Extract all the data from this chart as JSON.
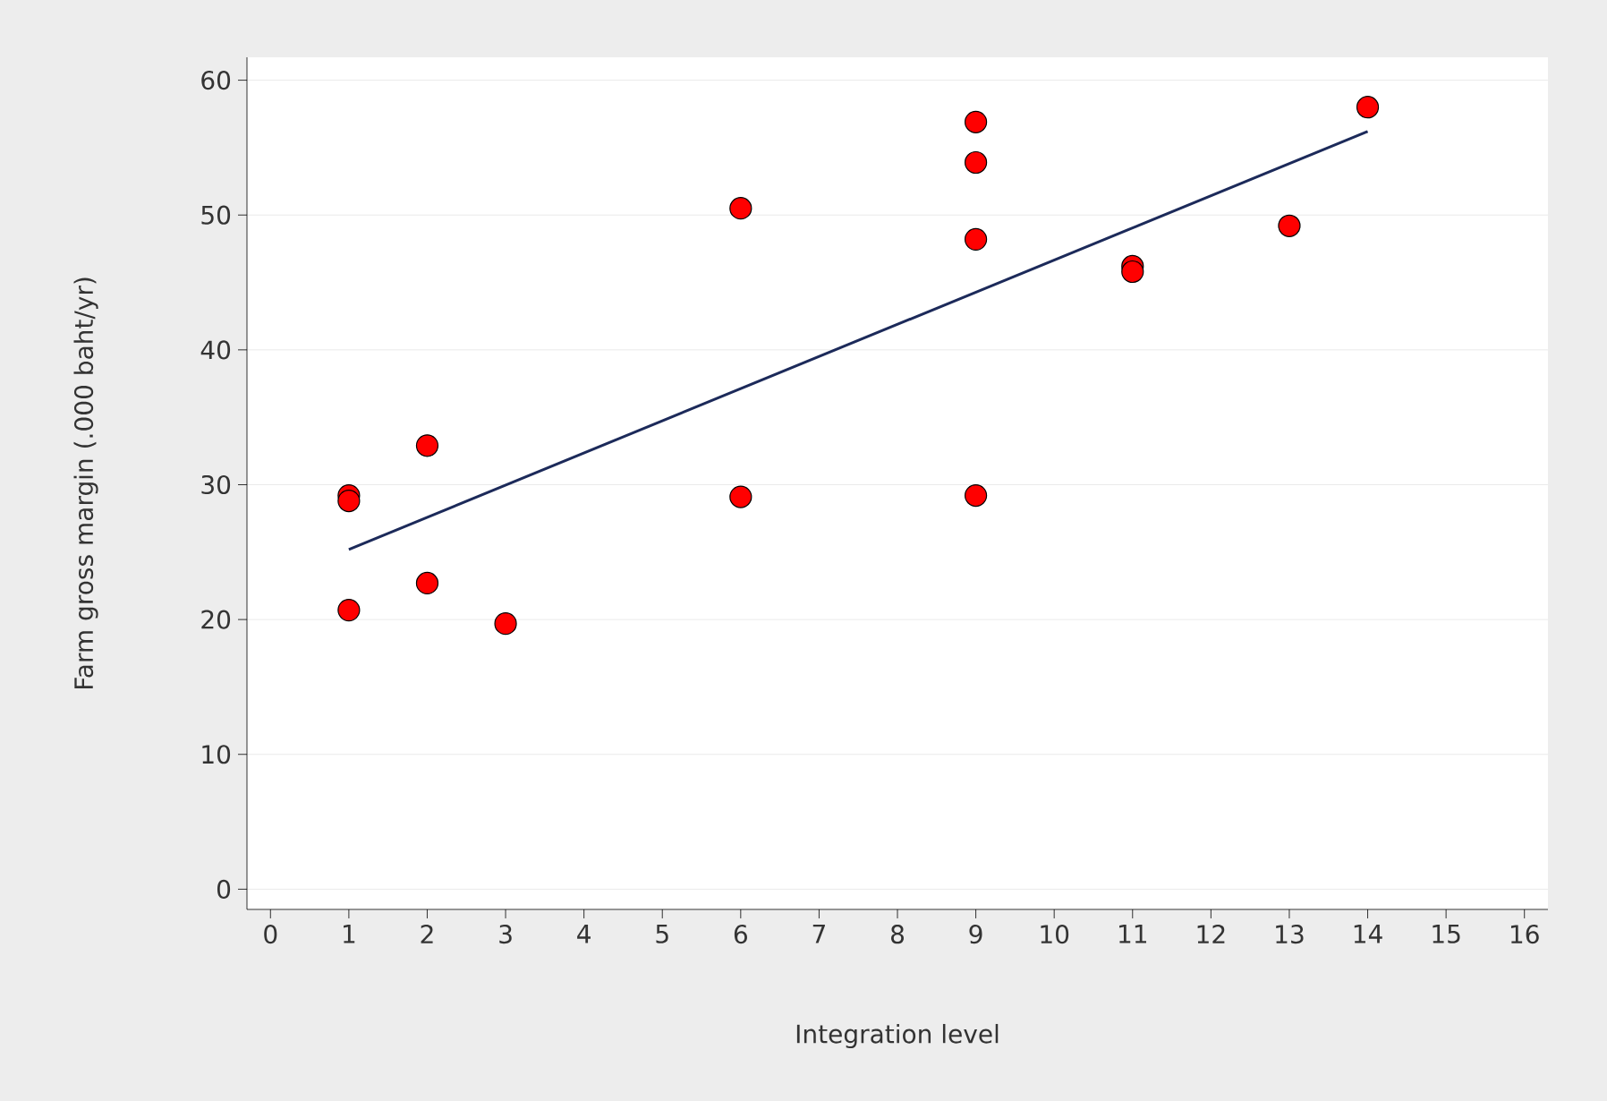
{
  "chart_data": {
    "type": "scatter",
    "xlabel": "Integration level",
    "ylabel": "Farm gross margin (.000 baht/yr)",
    "xlim": [
      -0.3,
      16.3
    ],
    "ylim": [
      -1.5,
      61.7
    ],
    "xticks": [
      0,
      1,
      2,
      3,
      4,
      5,
      6,
      7,
      8,
      9,
      10,
      11,
      12,
      13,
      14,
      15,
      16
    ],
    "yticks": [
      0,
      10,
      20,
      30,
      40,
      50,
      60
    ],
    "grid": "y",
    "series": [
      {
        "type": "scatter",
        "color": "#ff0000",
        "marker": "circle",
        "x": [
          1,
          1,
          1,
          2,
          2,
          3,
          6,
          6,
          9,
          9,
          9,
          9,
          11,
          11,
          13,
          14
        ],
        "values": [
          29.2,
          28.8,
          20.7,
          32.9,
          22.7,
          19.7,
          50.5,
          29.1,
          56.9,
          53.9,
          48.2,
          29.2,
          46.2,
          45.8,
          49.2,
          58.0
        ]
      },
      {
        "type": "line",
        "color": "#1c2a5a",
        "marker": "none",
        "line_style": "solid",
        "x": [
          1,
          14
        ],
        "values": [
          25.2,
          56.2
        ]
      }
    ]
  }
}
